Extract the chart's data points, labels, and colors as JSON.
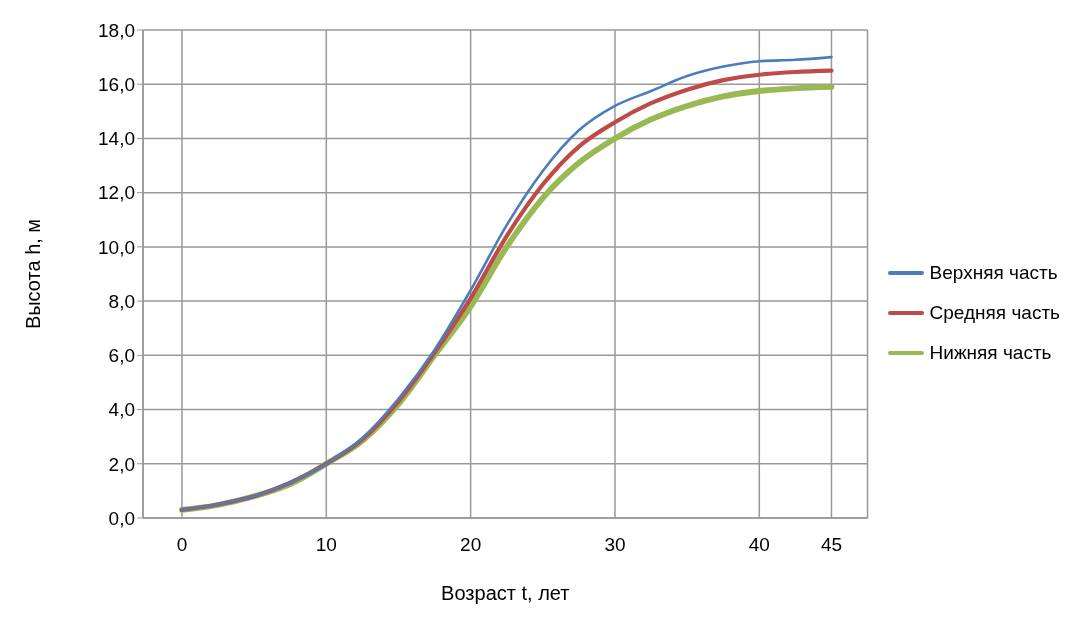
{
  "chart_data": {
    "type": "line",
    "xlabel": "Возраст  t, лет",
    "ylabel": "Высота  h, м",
    "x": [
      0,
      2.5,
      5,
      7.5,
      10,
      12.5,
      15,
      17.5,
      20,
      22.5,
      25,
      27.5,
      30,
      32.5,
      35,
      37.5,
      40,
      42.5,
      45
    ],
    "series": [
      {
        "name": "Верхняя часть",
        "color": "#4a7ebb",
        "values": [
          0.3,
          0.5,
          0.8,
          1.3,
          2.0,
          2.95,
          4.4,
          6.2,
          8.4,
          10.8,
          12.8,
          14.3,
          15.2,
          15.75,
          16.3,
          16.65,
          16.85,
          16.9,
          17.0
        ]
      },
      {
        "name": "Средняя часть",
        "color": "#be4b48",
        "values": [
          0.3,
          0.5,
          0.8,
          1.3,
          2.0,
          2.9,
          4.3,
          6.1,
          8.1,
          10.4,
          12.3,
          13.7,
          14.6,
          15.3,
          15.8,
          16.15,
          16.35,
          16.45,
          16.5
        ]
      },
      {
        "name": "Нижняя часть",
        "color": "#98b954",
        "values": [
          0.3,
          0.48,
          0.8,
          1.25,
          2.0,
          2.85,
          4.2,
          6.0,
          7.8,
          10.0,
          11.8,
          13.1,
          14.0,
          14.7,
          15.2,
          15.55,
          15.75,
          15.85,
          15.9
        ]
      }
    ],
    "xlim": [
      -2.7,
      47.5
    ],
    "xticks": [
      0,
      10,
      20,
      30,
      40,
      45
    ],
    "ylim": [
      0,
      18
    ],
    "yticks": [
      {
        "value": 0,
        "label": "0,0"
      },
      {
        "value": 2,
        "label": "2,0"
      },
      {
        "value": 4,
        "label": "4,0"
      },
      {
        "value": 6,
        "label": "6,0"
      },
      {
        "value": 8,
        "label": "8,0"
      },
      {
        "value": 10,
        "label": "10,0"
      },
      {
        "value": 12,
        "label": "12,0"
      },
      {
        "value": 14,
        "label": "14,0"
      },
      {
        "value": 16,
        "label": "16,0"
      },
      {
        "value": 18,
        "label": "18,0"
      }
    ],
    "grid": true,
    "legend": "right",
    "marker": "none",
    "line_style": "solid"
  }
}
